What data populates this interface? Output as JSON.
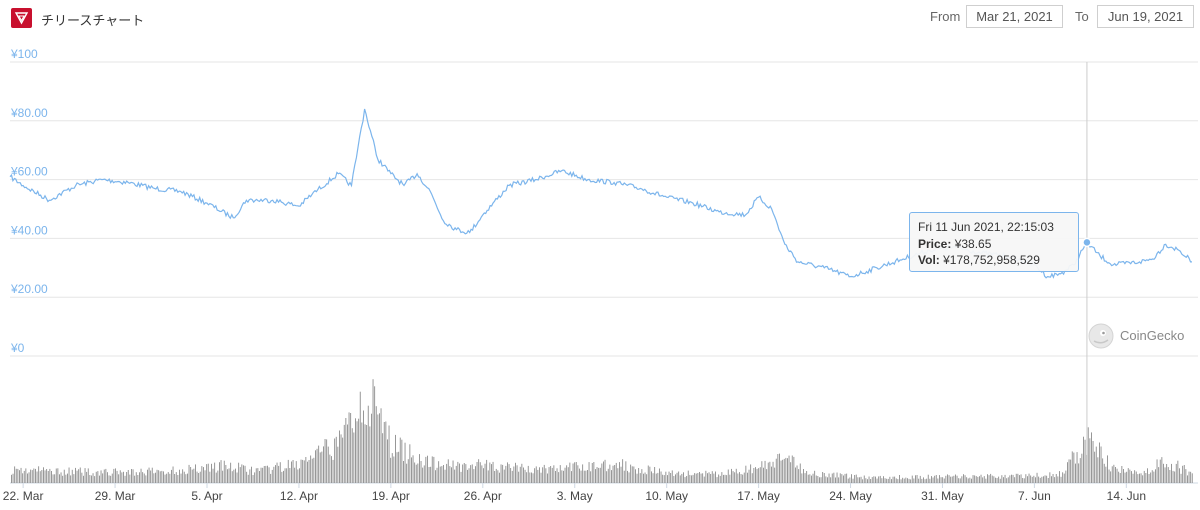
{
  "header": {
    "title": "チリースチャート",
    "from_label": "From",
    "from_date": "Mar 21, 2021",
    "to_label": "To",
    "to_date": "Jun 19, 2021"
  },
  "tooltip": {
    "date": "Fri 11 Jun 2021, 22:15:03",
    "price_label": "Price:",
    "price_value": "¥38.65",
    "vol_label": "Vol:",
    "vol_value": "¥178,752,958,529"
  },
  "credit": {
    "text": "CoinGecko"
  },
  "colors": {
    "line": "#7cb5ec",
    "volume": "#8c8c8c",
    "brand": "#c8102e",
    "grid": "#e6e6e6",
    "axis": "#7cb5ec"
  },
  "chart_data": [
    {
      "type": "line",
      "title": "",
      "ylim": [
        0,
        100
      ],
      "y_ticks": [
        0,
        20,
        40,
        60,
        80,
        100
      ],
      "y_tick_labels": [
        "¥0",
        "¥20.00",
        "¥40.00",
        "¥60.00",
        "¥80.00",
        "¥100"
      ],
      "x_tick_labels": [
        "22. Mar",
        "29. Mar",
        "5. Apr",
        "12. Apr",
        "19. Apr",
        "26. Apr",
        "3. May",
        "10. May",
        "17. May",
        "24. May",
        "31. May",
        "7. Jun",
        "14. Jun"
      ],
      "xlim": [
        "2021-03-21",
        "2021-06-19"
      ],
      "series": [
        {
          "values_x": [
            "2021-03-21",
            "2021-03-22",
            "2021-03-24",
            "2021-03-26",
            "2021-03-28",
            "2021-03-30",
            "2021-04-01",
            "2021-04-03",
            "2021-04-05",
            "2021-04-07",
            "2021-04-08",
            "2021-04-10",
            "2021-04-12",
            "2021-04-13",
            "2021-04-15",
            "2021-04-16",
            "2021-04-16T12:00",
            "2021-04-17",
            "2021-04-18",
            "2021-04-19",
            "2021-04-20",
            "2021-04-21",
            "2021-04-22",
            "2021-04-23",
            "2021-04-24",
            "2021-04-25",
            "2021-04-26",
            "2021-04-28",
            "2021-04-30",
            "2021-05-02",
            "2021-05-04",
            "2021-05-06",
            "2021-05-08",
            "2021-05-10",
            "2021-05-12",
            "2021-05-14",
            "2021-05-16",
            "2021-05-17",
            "2021-05-18",
            "2021-05-19",
            "2021-05-20",
            "2021-05-22",
            "2021-05-24",
            "2021-05-26",
            "2021-05-28",
            "2021-05-30",
            "2021-06-01",
            "2021-06-03",
            "2021-06-05",
            "2021-06-07",
            "2021-06-08",
            "2021-06-09",
            "2021-06-10",
            "2021-06-11",
            "2021-06-12",
            "2021-06-13",
            "2021-06-15",
            "2021-06-16",
            "2021-06-17",
            "2021-06-18",
            "2021-06-19"
          ],
          "values_y": [
            61,
            58,
            53,
            58,
            60,
            59,
            57,
            56,
            52,
            47,
            53,
            53,
            51,
            55,
            62,
            58,
            71,
            84,
            67,
            62,
            58,
            62,
            56,
            46,
            43,
            42,
            48,
            58,
            60,
            63,
            60,
            59,
            57,
            54,
            52,
            49,
            48,
            54,
            50,
            38,
            32,
            30,
            27,
            30,
            33,
            36,
            37,
            35,
            34,
            31,
            27,
            28,
            31,
            38.65,
            34,
            31,
            32,
            33,
            38,
            36,
            32
          ]
        }
      ]
    },
    {
      "type": "bar",
      "title": "",
      "series": [
        {
          "values_x": [
            "2021-03-21",
            "2021-03-25",
            "2021-03-29",
            "2021-04-02",
            "2021-04-06",
            "2021-04-09",
            "2021-04-12",
            "2021-04-15",
            "2021-04-17",
            "2021-04-19",
            "2021-04-22",
            "2021-04-26",
            "2021-04-30",
            "2021-05-03",
            "2021-05-06",
            "2021-05-10",
            "2021-05-14",
            "2021-05-17",
            "2021-05-19",
            "2021-05-21",
            "2021-05-25",
            "2021-05-29",
            "2021-06-02",
            "2021-06-06",
            "2021-06-09",
            "2021-06-11",
            "2021-06-13",
            "2021-06-15",
            "2021-06-17",
            "2021-06-19"
          ],
          "values_y": [
            14,
            12,
            11,
            12,
            18,
            12,
            20,
            40,
            95,
            40,
            20,
            18,
            14,
            16,
            20,
            10,
            9,
            16,
            25,
            10,
            6,
            6,
            7,
            7,
            9,
            45,
            14,
            10,
            22,
            10
          ]
        }
      ]
    }
  ]
}
